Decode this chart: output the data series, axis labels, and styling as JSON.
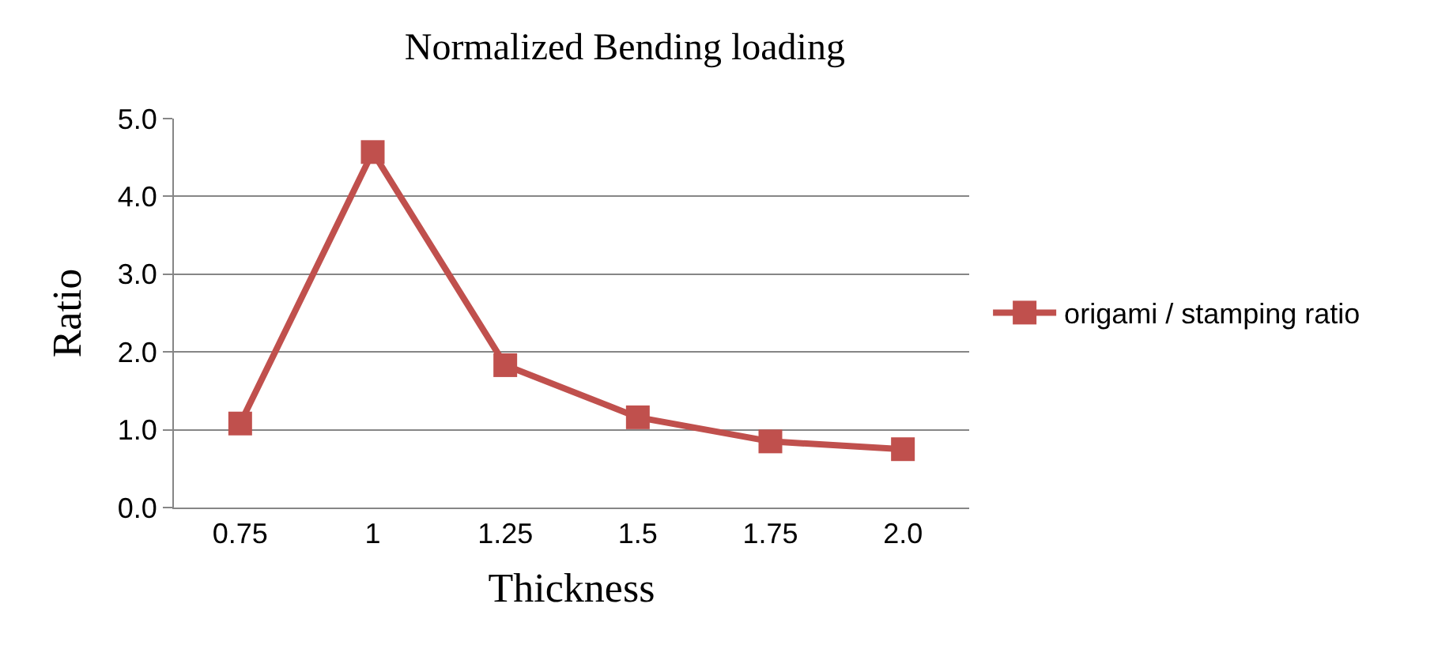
{
  "chart_data": {
    "type": "line",
    "title": "Normalized Bending loading",
    "xlabel": "Thickness",
    "ylabel": "Ratio",
    "categories": [
      "0.75",
      "1",
      "1.25",
      "1.5",
      "1.75",
      "2.0"
    ],
    "series": [
      {
        "name": "origami / stamping ratio",
        "color": "#c0504d",
        "values": [
          1.08,
          4.57,
          1.83,
          1.16,
          0.85,
          0.75
        ]
      }
    ],
    "ylim": [
      0,
      5
    ],
    "yticks": [
      {
        "value": 0,
        "label": "0.0"
      },
      {
        "value": 1,
        "label": "1.0"
      },
      {
        "value": 2,
        "label": "2.0"
      },
      {
        "value": 3,
        "label": "3.0"
      },
      {
        "value": 4,
        "label": "4.0"
      },
      {
        "value": 5,
        "label": "5.0"
      }
    ],
    "grid": "y",
    "legend": "right",
    "marker": "square",
    "line_style": "solid"
  }
}
